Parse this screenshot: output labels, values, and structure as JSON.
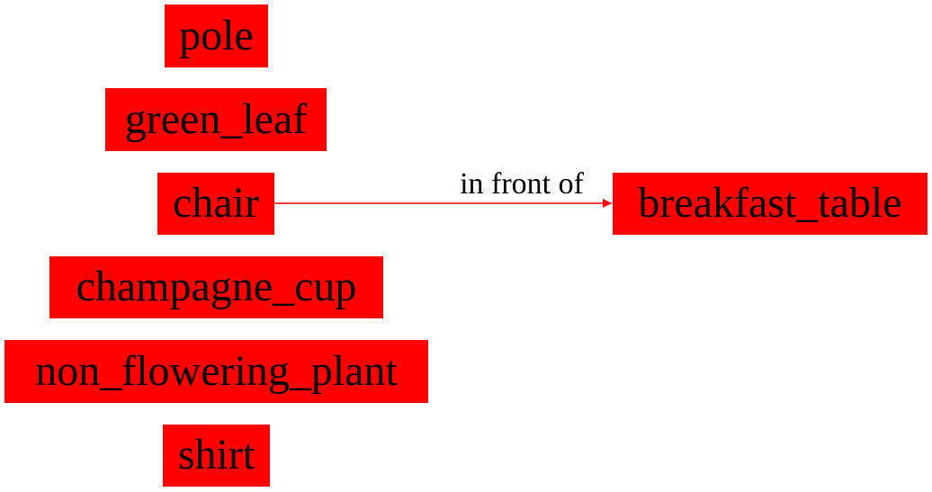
{
  "colors": {
    "node_fill": "#ff0000",
    "edge": "#ff0000",
    "text": "#000000"
  },
  "nodes": [
    {
      "id": "pole",
      "label": "pole"
    },
    {
      "id": "green_leaf",
      "label": "green_leaf"
    },
    {
      "id": "chair",
      "label": "chair"
    },
    {
      "id": "champagne_cup",
      "label": "champagne_cup"
    },
    {
      "id": "non_flowering_plant",
      "label": "non_flowering_plant"
    },
    {
      "id": "shirt",
      "label": "shirt"
    },
    {
      "id": "breakfast_table",
      "label": "breakfast_table"
    }
  ],
  "edges": [
    {
      "from": "chair",
      "to": "breakfast_table",
      "label": "in front of"
    }
  ]
}
